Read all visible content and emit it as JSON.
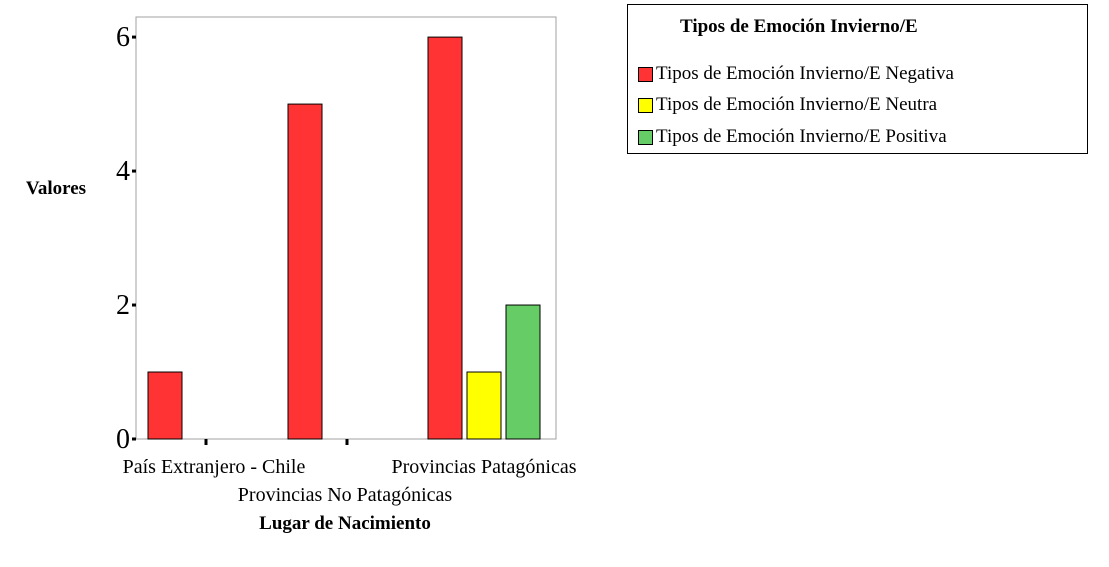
{
  "chart_data": {
    "type": "bar",
    "categories": [
      "País Extranjero - Chile",
      "Provincias No Patagónicas",
      "Provincias Patagónicas"
    ],
    "series": [
      {
        "name": "Tipos de Emoción Invierno/E Negativa",
        "values": [
          1,
          5,
          6
        ],
        "color": "#ff3333"
      },
      {
        "name": "Tipos de Emoción Invierno/E Neutra",
        "values": [
          0,
          0,
          1
        ],
        "color": "#ffff00"
      },
      {
        "name": "Tipos de Emoción Invierno/E Positiva",
        "values": [
          0,
          0,
          2
        ],
        "color": "#66cc66"
      }
    ],
    "xlabel": "Lugar de Nacimiento",
    "ylabel": "Valores",
    "ylim": [
      0,
      6.3
    ],
    "yticks": [
      0,
      2,
      4,
      6
    ],
    "legend": {
      "title": "Tipos de Emoción Invierno/E",
      "position": "top-right"
    },
    "grid": false
  }
}
